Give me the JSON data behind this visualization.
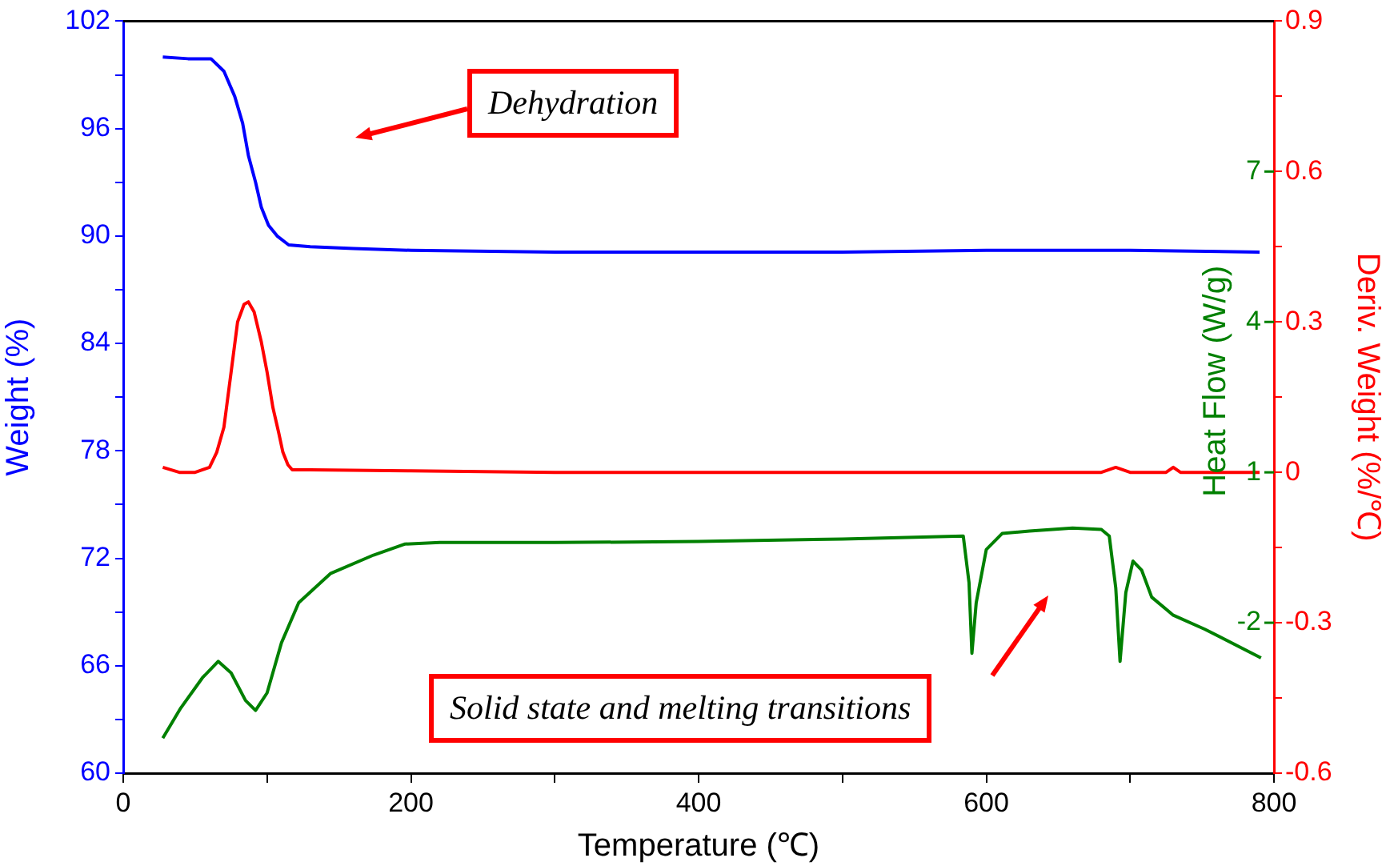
{
  "chart_data": {
    "type": "line",
    "xlabel": "Temperature (℃)",
    "ylabel": "Weight (%)",
    "y2label": "Heat Flow (W/g)",
    "y3label": "Deriv. Weight (%/℃)",
    "xlim": [
      0,
      800
    ],
    "xticks": [
      0,
      {
        "value": 100,
        "label": null
      },
      200,
      {
        "value": 300,
        "label": null
      },
      400,
      {
        "value": 500,
        "label": null
      },
      600,
      {
        "value": 700,
        "label": null
      },
      800
    ],
    "ylim": [
      60,
      102
    ],
    "yticks": [
      60,
      {
        "value": 63,
        "label": null
      },
      66,
      {
        "value": 69,
        "label": null
      },
      72,
      {
        "value": 75,
        "label": null
      },
      78,
      {
        "value": 81,
        "label": null
      },
      84,
      {
        "value": 87,
        "label": null
      },
      90,
      {
        "value": 93,
        "label": null
      },
      96,
      {
        "value": 99,
        "label": null
      },
      102
    ],
    "y2lim": [
      -5,
      10
    ],
    "y2ticks": [
      -2,
      1,
      4,
      7
    ],
    "y3lim": [
      -0.6,
      0.9
    ],
    "y3ticks": [
      -0.6,
      {
        "value": -0.45,
        "label": null
      },
      -0.3,
      {
        "value": -0.15,
        "label": null
      },
      0.0,
      {
        "value": 0.15,
        "label": null
      },
      0.3,
      {
        "value": 0.45,
        "label": null
      },
      0.6,
      {
        "value": 0.75,
        "label": null
      },
      0.9
    ],
    "grid": false,
    "legend": false,
    "marker": "none",
    "line_style": "solid",
    "annotations": [
      "Dehydration",
      "Solid state and melting transitions"
    ],
    "series": [
      {
        "color": "#0000ff",
        "x": [
          27.5,
          45,
          61,
          70,
          77.5,
          83,
          87,
          92,
          96,
          101,
          107,
          115,
          130,
          160,
          200,
          300,
          400,
          500,
          600,
          700,
          790
        ],
        "values": [
          100.0,
          99.9,
          99.9,
          99.2,
          97.8,
          96.3,
          94.5,
          93.0,
          91.6,
          90.6,
          90.0,
          89.5,
          89.4,
          89.3,
          89.2,
          89.1,
          89.1,
          89.1,
          89.2,
          89.2,
          89.1
        ]
      },
      {
        "color": "#ff0000",
        "axis": "y3",
        "x": [
          27.5,
          39,
          50,
          60,
          65,
          70,
          75,
          79.5,
          84,
          87,
          91,
          96,
          100,
          104,
          108,
          111,
          114.5,
          117.5,
          130,
          200,
          300,
          400,
          500,
          600,
          680,
          690,
          700,
          725,
          730,
          735,
          790
        ],
        "values": [
          0.01,
          0.0,
          0.0,
          0.01,
          0.04,
          0.09,
          0.2,
          0.3,
          0.335,
          0.34,
          0.32,
          0.26,
          0.2,
          0.13,
          0.08,
          0.04,
          0.015,
          0.005,
          0.005,
          0.003,
          0.0,
          0.0,
          0.0,
          0.0,
          0.0,
          0.01,
          0.0,
          0.0,
          0.01,
          0.0,
          0.0
        ]
      },
      {
        "color": "#008000",
        "axis": "y2",
        "x": [
          27.5,
          40,
          55,
          66,
          75,
          85,
          92,
          100,
          110,
          122,
          144,
          174,
          196,
          220,
          300,
          400,
          500,
          584,
          588,
          590,
          593,
          600,
          611,
          630,
          660,
          680,
          685.5,
          690,
          693,
          697,
          702,
          708,
          715,
          730,
          752,
          791
        ],
        "values": [
          -4.3,
          -3.7,
          -3.1,
          -2.77,
          -3.0,
          -3.55,
          -3.75,
          -3.4,
          -2.4,
          -1.6,
          -1.02,
          -0.65,
          -0.43,
          -0.4,
          -0.4,
          -0.38,
          -0.33,
          -0.27,
          -1.2,
          -2.61,
          -1.6,
          -0.54,
          -0.22,
          -0.17,
          -0.11,
          -0.14,
          -0.27,
          -1.3,
          -2.77,
          -1.4,
          -0.77,
          -0.95,
          -1.49,
          -1.85,
          -2.13,
          -2.7
        ]
      }
    ]
  }
}
